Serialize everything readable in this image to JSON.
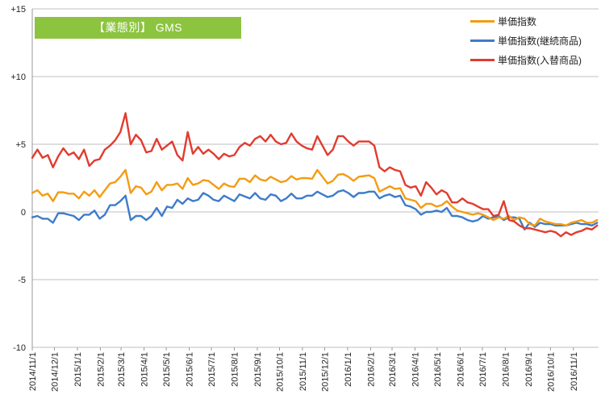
{
  "chart_data": {
    "type": "line",
    "title": "【業態別】 GMS",
    "ylim": [
      -10,
      15
    ],
    "yticks": [
      15,
      10,
      5,
      0,
      -5,
      -10
    ],
    "ytick_labels": [
      "+15",
      "+10",
      "+5",
      "0",
      "-5",
      "-10"
    ],
    "x_tick_labels": [
      "2014/11/1",
      "2014/12/1",
      "2015/1/1",
      "2015/2/1",
      "2015/3/1",
      "2015/4/1",
      "2015/5/1",
      "2015/6/1",
      "2015/7/1",
      "2015/8/1",
      "2015/9/1",
      "2015/10/1",
      "2015/11/1",
      "2015/12/1",
      "2016/1/1",
      "2016/2/1",
      "2016/3/1",
      "2016/4/1",
      "2016/5/1",
      "2016/6/1",
      "2016/7/1",
      "2016/8/1",
      "2016/9/1",
      "2016/10/1",
      "2016/11/1"
    ],
    "x_start": "2014/11/1",
    "x_step_days": 7,
    "grid": "horizontal",
    "legend_position": "top-right",
    "series": [
      {
        "name": "単価指数",
        "color": "#f39c12",
        "values": [
          1.4,
          1.6,
          1.2,
          1.35,
          0.8,
          1.45,
          1.45,
          1.35,
          1.35,
          1.0,
          1.5,
          1.2,
          1.6,
          1.1,
          1.6,
          2.1,
          2.2,
          2.6,
          3.1,
          1.4,
          1.9,
          1.8,
          1.3,
          1.5,
          2.2,
          1.6,
          2.0,
          2.0,
          2.1,
          1.7,
          2.5,
          2.0,
          2.1,
          2.35,
          2.3,
          2.0,
          1.7,
          2.1,
          1.9,
          1.85,
          2.45,
          2.45,
          2.2,
          2.7,
          2.4,
          2.3,
          2.6,
          2.4,
          2.2,
          2.3,
          2.65,
          2.4,
          2.5,
          2.5,
          2.45,
          3.1,
          2.6,
          2.1,
          2.3,
          2.75,
          2.8,
          2.6,
          2.3,
          2.6,
          2.65,
          2.7,
          2.5,
          1.5,
          1.7,
          1.9,
          1.7,
          1.75,
          1.0,
          0.9,
          0.8,
          0.3,
          0.6,
          0.6,
          0.4,
          0.5,
          0.8,
          0.4,
          0.1,
          0.0,
          -0.1,
          -0.2,
          -0.1,
          -0.2,
          -0.4,
          -0.6,
          -0.4,
          -0.5,
          -0.3,
          -0.6,
          -0.4,
          -0.5,
          -0.9,
          -1.0,
          -0.5,
          -0.7,
          -0.8,
          -0.9,
          -0.9,
          -1.0,
          -0.8,
          -0.7,
          -0.6,
          -0.8,
          -0.8,
          -0.6
        ]
      },
      {
        "name": "単価指数(継続商品)",
        "color": "#3d7cc9",
        "values": [
          -0.4,
          -0.3,
          -0.5,
          -0.5,
          -0.8,
          -0.1,
          -0.1,
          -0.2,
          -0.3,
          -0.6,
          -0.2,
          -0.2,
          0.1,
          -0.5,
          -0.2,
          0.5,
          0.5,
          0.8,
          1.2,
          -0.6,
          -0.3,
          -0.3,
          -0.6,
          -0.3,
          0.3,
          -0.3,
          0.4,
          0.3,
          0.9,
          0.6,
          1.0,
          0.8,
          0.9,
          1.4,
          1.2,
          0.9,
          0.8,
          1.2,
          1.0,
          0.8,
          1.3,
          1.15,
          1.0,
          1.4,
          1.0,
          0.9,
          1.3,
          1.2,
          0.8,
          1.0,
          1.35,
          1.0,
          1.0,
          1.2,
          1.2,
          1.5,
          1.3,
          1.1,
          1.2,
          1.5,
          1.6,
          1.4,
          1.1,
          1.4,
          1.4,
          1.5,
          1.5,
          1.0,
          1.2,
          1.3,
          1.1,
          1.2,
          0.5,
          0.4,
          0.2,
          -0.2,
          0.0,
          0.0,
          0.1,
          0.0,
          0.3,
          -0.3,
          -0.3,
          -0.4,
          -0.6,
          -0.7,
          -0.6,
          -0.3,
          -0.5,
          -0.4,
          -0.3,
          -0.6,
          -0.4,
          -0.4,
          -0.5,
          -1.3,
          -0.8,
          -1.1,
          -0.8,
          -0.9,
          -0.9,
          -1.0,
          -1.0,
          -1.0,
          -0.9,
          -0.8,
          -0.9,
          -0.9,
          -1.0,
          -0.8
        ]
      },
      {
        "name": "単価指数(入替商品)",
        "color": "#e23b2e",
        "values": [
          4.0,
          4.6,
          4.0,
          4.2,
          3.3,
          4.1,
          4.7,
          4.2,
          4.4,
          3.9,
          4.6,
          3.4,
          3.8,
          3.9,
          4.6,
          4.9,
          5.3,
          5.9,
          7.3,
          5.0,
          5.7,
          5.3,
          4.4,
          4.5,
          5.4,
          4.6,
          4.9,
          5.2,
          4.2,
          3.8,
          5.9,
          4.3,
          4.8,
          4.3,
          4.6,
          4.3,
          3.9,
          4.3,
          4.1,
          4.2,
          4.8,
          5.1,
          4.9,
          5.4,
          5.6,
          5.2,
          5.7,
          5.2,
          5.0,
          5.1,
          5.8,
          5.2,
          4.9,
          4.7,
          4.6,
          5.6,
          4.9,
          4.2,
          4.6,
          5.6,
          5.6,
          5.2,
          4.9,
          5.2,
          5.2,
          5.2,
          4.9,
          3.3,
          3.0,
          3.3,
          3.1,
          3.0,
          2.0,
          1.8,
          1.9,
          1.2,
          2.2,
          1.8,
          1.3,
          1.6,
          1.4,
          0.7,
          0.7,
          1.0,
          0.7,
          0.6,
          0.4,
          0.2,
          0.2,
          -0.3,
          -0.2,
          0.8,
          -0.6,
          -0.7,
          -1.0,
          -1.2,
          -1.2,
          -1.3,
          -1.4,
          -1.5,
          -1.4,
          -1.5,
          -1.8,
          -1.5,
          -1.7,
          -1.5,
          -1.4,
          -1.2,
          -1.3,
          -1.0
        ]
      }
    ]
  }
}
